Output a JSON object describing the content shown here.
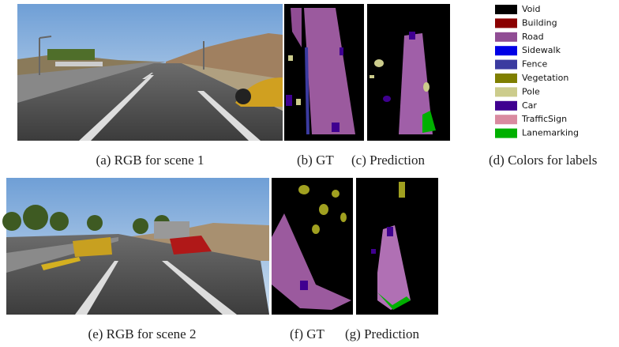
{
  "figure": {
    "captions": [
      "(a) RGB for scene 1",
      "(b) GT",
      "(c) Prediction",
      "(d) Colors for labels",
      "(e) RGB for scene 2",
      "(f) GT",
      "(g) Prediction"
    ],
    "legend": [
      {
        "name": "Void",
        "color": "#000000"
      },
      {
        "name": "Building",
        "color": "#8b0000"
      },
      {
        "name": "Road",
        "color": "#904d94"
      },
      {
        "name": "Sidewalk",
        "color": "#0000e6"
      },
      {
        "name": "Fence",
        "color": "#3b3ba0"
      },
      {
        "name": "Vegetation",
        "color": "#7f7f00"
      },
      {
        "name": "Pole",
        "color": "#cccc8c"
      },
      {
        "name": "Car",
        "color": "#3f0090"
      },
      {
        "name": "TrafficSign",
        "color": "#d98aa0"
      },
      {
        "name": "Lanemarking",
        "color": "#00b000"
      }
    ]
  }
}
